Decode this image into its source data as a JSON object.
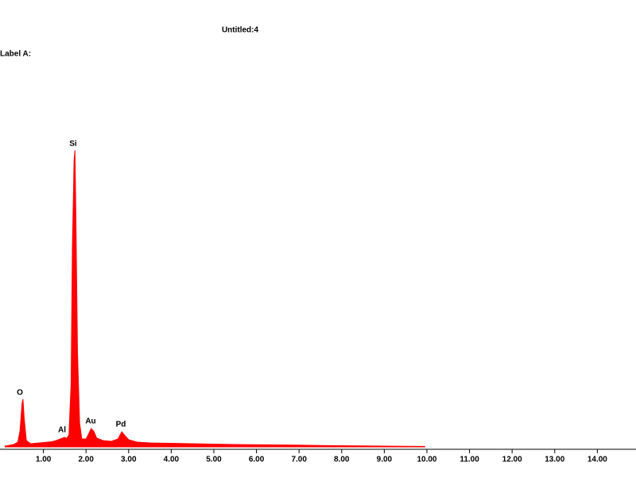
{
  "chart_data": {
    "type": "area",
    "title": "Untitled:4",
    "subtitle": "Label A:",
    "color": "#ff0000",
    "x": [
      0.1,
      0.2,
      0.3,
      0.4,
      0.45,
      0.5,
      0.52,
      0.55,
      0.6,
      0.7,
      0.8,
      0.9,
      1.0,
      1.1,
      1.2,
      1.3,
      1.4,
      1.45,
      1.49,
      1.55,
      1.6,
      1.65,
      1.68,
      1.72,
      1.74,
      1.76,
      1.8,
      1.85,
      1.9,
      2.0,
      2.05,
      2.12,
      2.18,
      2.25,
      2.4,
      2.6,
      2.75,
      2.84,
      2.9,
      3.0,
      3.2,
      3.5,
      4.0,
      4.5,
      5.0,
      5.5,
      6.0,
      6.5,
      7.0,
      7.5,
      8.0,
      8.5,
      9.0,
      9.5,
      9.95
    ],
    "values": [
      10,
      20,
      30,
      60,
      200,
      550,
      600,
      350,
      80,
      40,
      45,
      50,
      55,
      60,
      65,
      80,
      100,
      110,
      120,
      110,
      150,
      800,
      2500,
      3600,
      3730,
      3000,
      1200,
      300,
      100,
      100,
      150,
      230,
      200,
      110,
      80,
      70,
      100,
      190,
      150,
      90,
      60,
      50,
      45,
      40,
      35,
      30,
      28,
      25,
      22,
      18,
      15,
      12,
      10,
      8,
      6
    ],
    "annotations": [
      "O",
      "Al",
      "Si",
      "Au",
      "Pd"
    ],
    "xlim": [
      0,
      14.9
    ],
    "ylim": [
      0,
      4000
    ],
    "xticks": [
      {
        "value": 1,
        "label": "1.00"
      },
      {
        "value": 2,
        "label": "2.00"
      },
      {
        "value": 3,
        "label": "3.00"
      },
      {
        "value": 4,
        "label": "4.00"
      },
      {
        "value": 5,
        "label": "5.00"
      },
      {
        "value": 6,
        "label": "6.00"
      },
      {
        "value": 7,
        "label": "7.00"
      },
      {
        "value": 8,
        "label": "8.00"
      },
      {
        "value": 9,
        "label": "9.00"
      },
      {
        "value": 10,
        "label": "10.00"
      },
      {
        "value": 11,
        "label": "11.00"
      },
      {
        "value": 12,
        "label": "12.00"
      },
      {
        "value": 13,
        "label": "13.00"
      },
      {
        "value": 14,
        "label": "14.00"
      }
    ]
  }
}
